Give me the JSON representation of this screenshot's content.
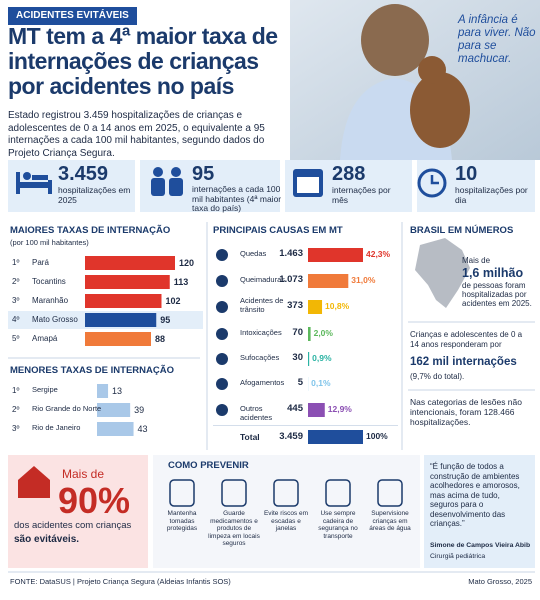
{
  "header": {
    "tag": "ACIDENTES EVITÁVEIS",
    "title": "MT tem a 4ª maior taxa de internações de crianças por acidentes no país",
    "lead": "Estado registrou 3.459 hospitalizações de crianças e adolescentes de 0 a 14 anos em 2025, o equivalente a 95 internações a cada 100 mil habitantes, segundo dados do Projeto Criança Segura.",
    "quote": "A infância é para viver. Não para se machucar."
  },
  "stats": [
    {
      "value": "3.459",
      "label": "hospitalizações em 2025"
    },
    {
      "value": "95",
      "label": "internações a cada 100 mil habitantes (4ª maior taxa do país)"
    },
    {
      "value": "288",
      "label": "internações por mês"
    },
    {
      "value": "10",
      "label": "hospitalizações por dia"
    }
  ],
  "highest": {
    "title": "MAIORES TAXAS DE INTERNAÇÃO",
    "subtitle": "(por 100 mil habitantes)",
    "ranks": [
      "1º",
      "2º",
      "3º",
      "4º",
      "5º"
    ],
    "states": [
      "Pará",
      "Tocantins",
      "Maranhão",
      "Mato Grosso",
      "Amapá"
    ],
    "values": [
      120,
      113,
      102,
      95,
      88
    ],
    "colors": [
      "#e0352b",
      "#e0352b",
      "#e0352b",
      "#1f4e9c",
      "#f07a3a"
    ]
  },
  "lowest": {
    "title": "MENORES TAXAS DE INTERNAÇÃO",
    "ranks": [
      "1º",
      "2º",
      "3º"
    ],
    "states": [
      "Sergipe",
      "Rio Grande do Norte",
      "Rio de Janeiro"
    ],
    "values": [
      13,
      39,
      43
    ],
    "color": "#a9c8e8"
  },
  "causes": {
    "title": "PRINCIPAIS CAUSAS EM MT",
    "labels": [
      "Quedas",
      "Queimaduras",
      "Acidentes de trânsito",
      "Intoxicações",
      "Sufocações",
      "Afogamentos",
      "Outros acidentes"
    ],
    "counts": [
      "1.463",
      "1.073",
      "373",
      "70",
      "30",
      "5",
      "445"
    ],
    "shares": [
      42.3,
      31.0,
      10.8,
      2.0,
      0.9,
      0.1,
      12.9
    ],
    "share_labels": [
      "42,3%",
      "31,0%",
      "10,8%",
      "2,0%",
      "0,9%",
      "0,1%",
      "12,9%"
    ],
    "colors": [
      "#e0352b",
      "#f07a3a",
      "#f2b705",
      "#5cb85c",
      "#2bb3a3",
      "#7fc4ea",
      "#8b4fb3"
    ],
    "total_label": "Total",
    "total_count": "3.459",
    "total_share": 100,
    "total_share_label": "100%",
    "total_color": "#1f4e9c"
  },
  "brazil": {
    "title": "BRASIL EM NÚMEROS",
    "intro": "Mais de",
    "highlight": "1,6 milhão",
    "text": "de pessoas foram hospitalizadas por acidentes em 2025.",
    "kids_text": "Crianças e adolescentes de 0 a 14 anos responderam por",
    "kids_highlight": "162 mil internações",
    "kids_note": "(9,7% do total).",
    "categories_text": "Nas categorias de lesões não intencionais, foram 128.466 hospitalizações."
  },
  "avoidable": {
    "intro": "Mais de",
    "value": "90%",
    "text": "dos acidentes com crianças",
    "bold": "são evitáveis."
  },
  "prevention": {
    "title": "COMO PREVENIR",
    "items": [
      "Mantenha tomadas protegidas",
      "Guarde medicamentos e produtos de limpeza em locais seguros",
      "Evite riscos em escadas e janelas",
      "Use sempre cadeira de segurança no transporte",
      "Supervisione crianças em áreas de água"
    ]
  },
  "quote": {
    "text": "“É função de todos a construção de ambientes acolhedores e amorosos, mas acima de tudo, seguros para o desenvolvimento das crianças.”",
    "author": "Simone de Campos Vieira Abib",
    "role": "Cirurgiã pediátrica"
  },
  "footer": {
    "source": "FONTE: DataSUS | Projeto Criança Segura (Aldeias Infantis SOS)",
    "place": "Mato Grosso, 2025"
  }
}
